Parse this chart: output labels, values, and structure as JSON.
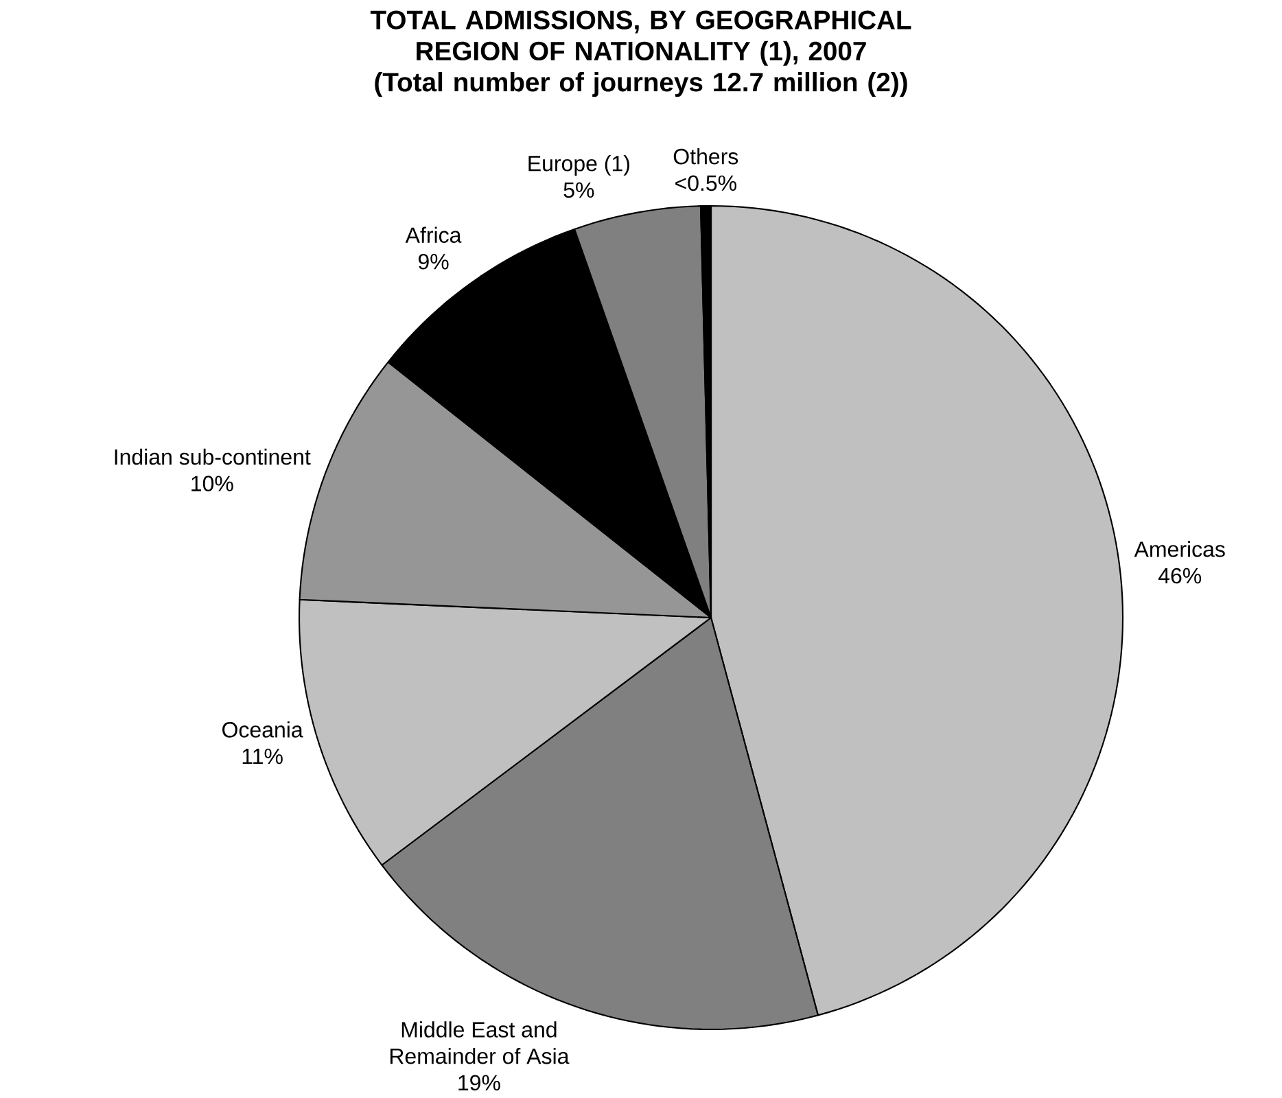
{
  "chart_data": {
    "type": "pie",
    "title": "TOTAL ADMISSIONS, BY GEOGRAPHICAL REGION OF NATIONALITY (1), 2007",
    "subtitle": "(Total number of journeys 12.7 million (2))",
    "categories": [
      "Americas",
      "Middle East and Remainder of Asia",
      "Oceania",
      "Indian sub-continent",
      "Africa",
      "Europe (1)",
      "Others"
    ],
    "values": [
      46,
      19,
      11,
      10,
      9,
      5,
      0.4
    ],
    "value_labels": [
      "46%",
      "19%",
      "11%",
      "10%",
      "9%",
      "5%",
      "<0.5%"
    ],
    "colors": [
      "#c0c0c0",
      "#808080",
      "#c0c0c0",
      "#969696",
      "#000000",
      "#808080",
      "#000000"
    ]
  }
}
